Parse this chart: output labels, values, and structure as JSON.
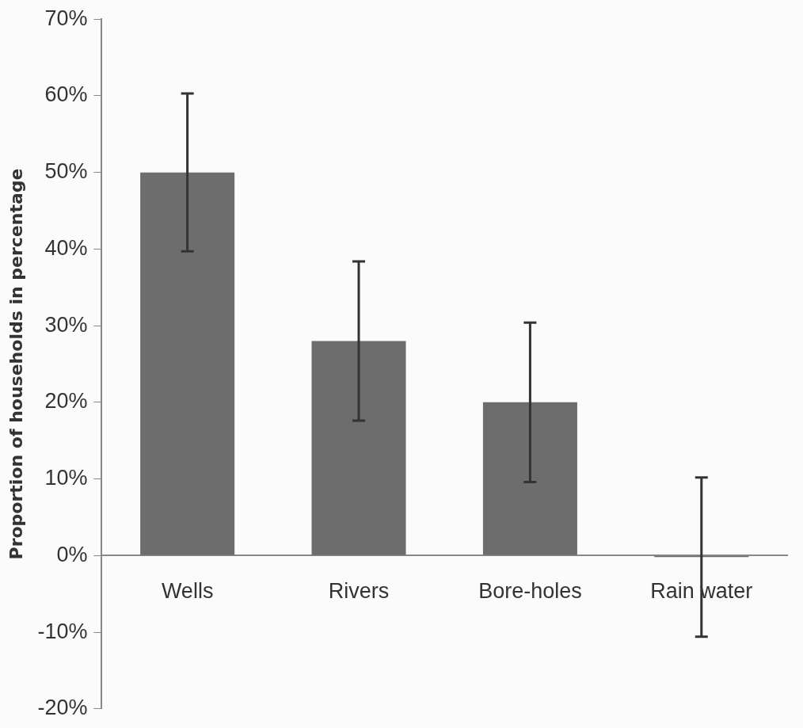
{
  "chart_data": {
    "type": "bar",
    "ylabel": "Proportion of households in percentage",
    "categories": [
      "Wells",
      "Rivers",
      "Bore-holes",
      "Rain water"
    ],
    "values": [
      50,
      28,
      20,
      -0.2
    ],
    "errors": [
      10.3,
      10.4,
      10.4,
      10.4
    ],
    "color": "#6d6d6d",
    "ylim": [
      -20,
      70
    ],
    "yticks": [
      {
        "value": -20,
        "label": "-20%"
      },
      {
        "value": -10,
        "label": "-10%"
      },
      {
        "value": 0,
        "label": "0%"
      },
      {
        "value": 10,
        "label": "10%"
      },
      {
        "value": 20,
        "label": "20%"
      },
      {
        "value": 30,
        "label": "30%"
      },
      {
        "value": 40,
        "label": "40%"
      },
      {
        "value": 50,
        "label": "50%"
      },
      {
        "value": 60,
        "label": "60%"
      },
      {
        "value": 70,
        "label": "70%"
      }
    ],
    "grid": false,
    "legend": false
  }
}
